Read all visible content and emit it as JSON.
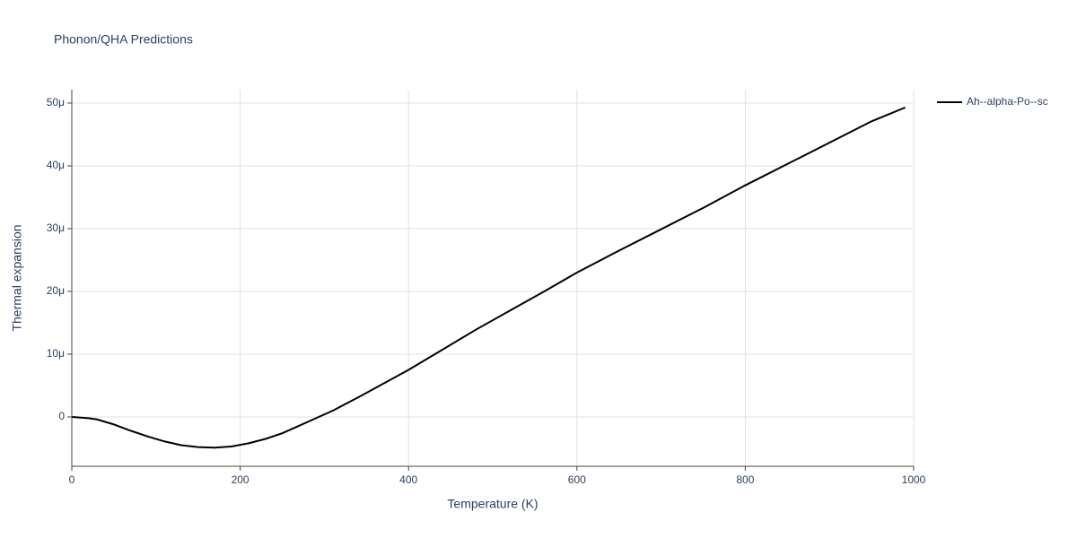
{
  "chart_data": {
    "type": "line",
    "title": "Phonon/QHA Predictions",
    "xlabel": "Temperature (K)",
    "ylabel": "Thermal expansion",
    "x": [
      0,
      20,
      30,
      50,
      70,
      90,
      110,
      130,
      150,
      170,
      190,
      210,
      230,
      250,
      270,
      290,
      310,
      340,
      370,
      400,
      440,
      480,
      520,
      560,
      600,
      650,
      700,
      750,
      800,
      850,
      900,
      950,
      990
    ],
    "series": [
      {
        "name": "Ah--alpha-Po--sc",
        "color": "#000000",
        "values": [
          0,
          -2e-07,
          -4e-07,
          -1.2e-06,
          -2.2e-06,
          -3.1e-06,
          -3.9e-06,
          -4.5e-06,
          -4.8e-06,
          -4.9e-06,
          -4.7e-06,
          -4.2e-06,
          -3.5e-06,
          -2.6e-06,
          -1.4e-06,
          -2e-07,
          1e-06,
          3.1e-06,
          5.3e-06,
          7.5e-06,
          1.07e-05,
          1.39e-05,
          1.69e-05,
          1.99e-05,
          2.3e-05,
          2.65e-05,
          2.99e-05,
          3.33e-05,
          3.69e-05,
          4.03e-05,
          4.37e-05,
          4.71e-05,
          4.93e-05
        ]
      }
    ],
    "xlim": [
      0,
      1000
    ],
    "xticks": [
      0,
      200,
      400,
      600,
      800,
      1000
    ],
    "ylim": [
      -7.86e-06,
      5.214e-05
    ],
    "yticks": [
      0,
      {
        "value": 1e-05,
        "label": "10μ"
      },
      {
        "value": 2e-05,
        "label": "20μ"
      },
      {
        "value": 3e-05,
        "label": "30μ"
      },
      {
        "value": 4e-05,
        "label": "40μ"
      },
      {
        "value": 5e-05,
        "label": "50μ"
      }
    ],
    "grid": true,
    "legend": "right"
  }
}
